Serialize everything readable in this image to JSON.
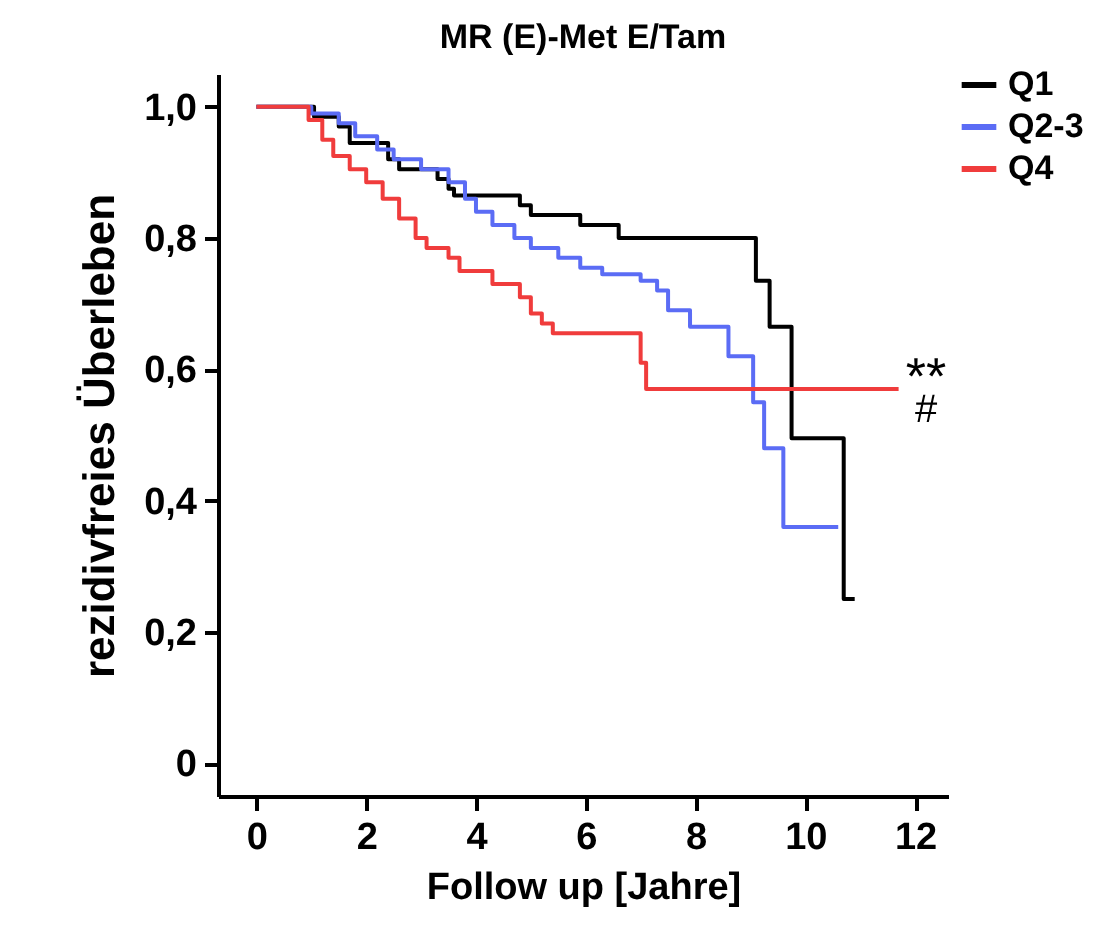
{
  "chart_data": {
    "type": "step",
    "title": "MR (E)-Met E/Tam",
    "xlabel": "Follow up [Jahre]",
    "ylabel": "rezidivfreies Überleben",
    "xlim": [
      -0.7,
      12.6
    ],
    "xticks": [
      0,
      2,
      4,
      6,
      8,
      10,
      12
    ],
    "ylim": [
      -0.05,
      1.05
    ],
    "yticks": [
      {
        "value": 0,
        "label": "0"
      },
      {
        "value": 0.2,
        "label": "0,2"
      },
      {
        "value": 0.4,
        "label": "0,4"
      },
      {
        "value": 0.6,
        "label": "0,6"
      },
      {
        "value": 0.8,
        "label": "0,8"
      },
      {
        "value": 1,
        "label": "1,0"
      }
    ],
    "grid": false,
    "legend": "top right",
    "line_style": "solid",
    "marker": "none",
    "annotations": [
      "**",
      "#"
    ],
    "series": [
      {
        "name": "Q1",
        "color": "#000000",
        "x": [
          0,
          1.05,
          1.5,
          1.7,
          2.4,
          2.6,
          3.3,
          3.5,
          3.6,
          4.8,
          5.0,
          5.9,
          6.6,
          9.1,
          9.35,
          9.75,
          10.7,
          10.9
        ],
        "values": [
          1,
          0.985,
          0.97,
          0.945,
          0.92,
          0.905,
          0.89,
          0.875,
          0.865,
          0.85,
          0.835,
          0.82,
          0.8,
          0.735,
          0.665,
          0.495,
          0.25,
          0.25
        ]
      },
      {
        "name": "Q2-3",
        "color": "#5b6cf5",
        "x": [
          0,
          1.0,
          1.5,
          1.8,
          2.2,
          2.5,
          3.0,
          3.5,
          3.8,
          4.0,
          4.3,
          4.7,
          5.0,
          5.5,
          5.9,
          6.3,
          7.0,
          7.3,
          7.5,
          7.9,
          8.6,
          9.05,
          9.25,
          9.6,
          10.6
        ],
        "values": [
          1,
          0.99,
          0.975,
          0.955,
          0.935,
          0.92,
          0.905,
          0.885,
          0.86,
          0.84,
          0.82,
          0.8,
          0.785,
          0.77,
          0.755,
          0.745,
          0.735,
          0.72,
          0.69,
          0.665,
          0.62,
          0.55,
          0.48,
          0.36,
          0.36
        ]
      },
      {
        "name": "Q4",
        "color": "#f03c3c",
        "x": [
          0,
          0.95,
          1.2,
          1.4,
          1.7,
          2.0,
          2.3,
          2.6,
          2.9,
          3.1,
          3.5,
          3.7,
          4.3,
          4.8,
          5.0,
          5.2,
          5.4,
          7.0,
          7.1,
          11.7
        ],
        "values": [
          1,
          0.98,
          0.95,
          0.925,
          0.905,
          0.885,
          0.86,
          0.83,
          0.8,
          0.785,
          0.77,
          0.75,
          0.73,
          0.71,
          0.685,
          0.67,
          0.655,
          0.61,
          0.57,
          0.57
        ]
      }
    ]
  }
}
